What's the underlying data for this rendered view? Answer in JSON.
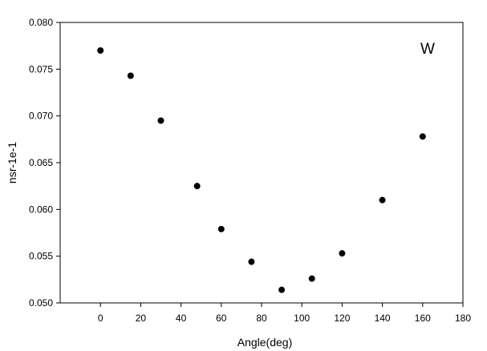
{
  "chart_data": {
    "type": "scatter",
    "title": "",
    "xlabel": "Angle(deg)",
    "ylabel": "nsr-1e-1",
    "xlim": [
      -20,
      180
    ],
    "ylim": [
      0.05,
      0.08
    ],
    "x_ticks": [
      0,
      20,
      40,
      60,
      80,
      100,
      120,
      140,
      160,
      180
    ],
    "x_tick_labels": [
      "0",
      "20",
      "40",
      "60",
      "80",
      "100",
      "120",
      "140",
      "160",
      "180"
    ],
    "y_ticks": [
      0.05,
      0.055,
      0.06,
      0.065,
      0.07,
      0.075,
      0.08
    ],
    "y_tick_labels": [
      "0.050",
      "0.055",
      "0.060",
      "0.065",
      "0.070",
      "0.075",
      "0.080"
    ],
    "grid": false,
    "annotation": "W",
    "marker_color": "#000000",
    "series": [
      {
        "x": [
          0,
          15,
          30,
          48,
          60,
          75,
          90,
          105,
          120,
          140,
          160
        ],
        "y": [
          0.077,
          0.0743,
          0.0695,
          0.0625,
          0.0579,
          0.0544,
          0.0514,
          0.0526,
          0.0553,
          0.061,
          0.0678
        ]
      }
    ]
  }
}
